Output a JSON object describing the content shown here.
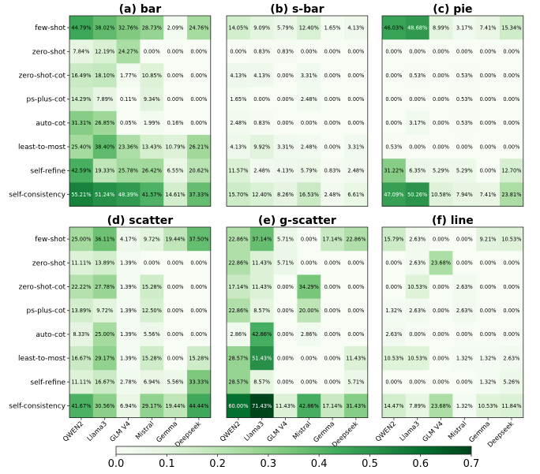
{
  "chart_data": {
    "type": "heatmap",
    "rows": [
      "few-shot",
      "zero-shot",
      "zero-shot-cot",
      "ps-plus-cot",
      "auto-cot",
      "least-to-most",
      "self-refine",
      "self-consistency"
    ],
    "columns": [
      "QWEN2",
      "Llama3",
      "GLM V4",
      "Mistral",
      "Gemma",
      "Deepseek"
    ],
    "colorbar": {
      "min": 0.0,
      "max": 0.7,
      "ticks": [
        "0.0",
        "0.1",
        "0.2",
        "0.3",
        "0.4",
        "0.5",
        "0.6",
        "0.7"
      ],
      "low_color": "#f7fcf5",
      "high_color": "#00441b"
    },
    "panels": [
      {
        "title": "(a) bar",
        "values": [
          [
            44.79,
            38.02,
            32.76,
            28.73,
            2.09,
            24.76
          ],
          [
            7.84,
            12.19,
            24.27,
            0.0,
            0.0,
            0.0
          ],
          [
            16.49,
            18.1,
            1.77,
            10.85,
            0.0,
            0.0
          ],
          [
            14.29,
            7.89,
            0.11,
            9.34,
            0.0,
            0.0
          ],
          [
            31.31,
            26.85,
            0.05,
            1.99,
            0.16,
            0.0
          ],
          [
            25.4,
            38.4,
            23.36,
            13.43,
            10.79,
            26.21
          ],
          [
            42.59,
            19.33,
            25.78,
            26.42,
            6.55,
            20.62
          ],
          [
            55.21,
            51.24,
            48.39,
            41.57,
            14.61,
            37.33
          ]
        ]
      },
      {
        "title": "(b) s-bar",
        "values": [
          [
            14.05,
            9.09,
            5.79,
            12.4,
            1.65,
            4.13
          ],
          [
            0.0,
            0.83,
            0.83,
            0.0,
            0.0,
            0.0
          ],
          [
            4.13,
            4.13,
            0.0,
            3.31,
            0.0,
            0.0
          ],
          [
            1.65,
            0.0,
            0.0,
            2.48,
            0.0,
            0.0
          ],
          [
            2.48,
            0.83,
            0.0,
            0.0,
            0.0,
            0.0
          ],
          [
            4.13,
            9.92,
            3.31,
            2.48,
            0.0,
            3.31
          ],
          [
            11.57,
            2.48,
            4.13,
            5.79,
            0.83,
            2.48
          ],
          [
            15.7,
            12.4,
            8.26,
            16.53,
            2.48,
            6.61
          ]
        ]
      },
      {
        "title": "(c) pie",
        "values": [
          [
            46.03,
            48.68,
            8.99,
            3.17,
            7.41,
            15.34
          ],
          [
            0.0,
            0.0,
            0.0,
            0.0,
            0.0,
            0.0
          ],
          [
            0.0,
            0.53,
            0.0,
            0.53,
            0.0,
            0.0
          ],
          [
            0.0,
            0.0,
            0.0,
            0.53,
            0.0,
            0.0
          ],
          [
            0.0,
            3.17,
            0.0,
            0.53,
            0.0,
            0.0
          ],
          [
            0.53,
            0.0,
            0.0,
            0.0,
            0.0,
            0.0
          ],
          [
            31.22,
            6.35,
            5.29,
            5.29,
            0.0,
            12.7
          ],
          [
            47.09,
            50.26,
            10.58,
            7.94,
            7.41,
            23.81
          ]
        ]
      },
      {
        "title": "(d) scatter",
        "values": [
          [
            25.0,
            36.11,
            4.17,
            9.72,
            19.44,
            37.5
          ],
          [
            11.11,
            13.89,
            1.39,
            0.0,
            0.0,
            0.0
          ],
          [
            22.22,
            27.78,
            1.39,
            15.28,
            0.0,
            0.0
          ],
          [
            13.89,
            9.72,
            1.39,
            12.5,
            0.0,
            0.0
          ],
          [
            8.33,
            25.0,
            1.39,
            5.56,
            0.0,
            0.0
          ],
          [
            16.67,
            29.17,
            1.39,
            15.28,
            0.0,
            15.28
          ],
          [
            11.11,
            16.67,
            2.78,
            6.94,
            5.56,
            33.33
          ],
          [
            41.67,
            30.56,
            6.94,
            29.17,
            19.44,
            44.44
          ]
        ]
      },
      {
        "title": "(e) g-scatter",
        "values": [
          [
            22.86,
            37.14,
            5.71,
            0.0,
            17.14,
            22.86
          ],
          [
            22.86,
            11.43,
            5.71,
            0.0,
            0.0,
            0.0
          ],
          [
            17.14,
            11.43,
            0.0,
            34.29,
            0.0,
            0.0
          ],
          [
            22.86,
            8.57,
            0.0,
            20.0,
            0.0,
            0.0
          ],
          [
            2.86,
            42.86,
            0.0,
            2.86,
            0.0,
            0.0
          ],
          [
            28.57,
            51.43,
            0.0,
            0.0,
            0.0,
            11.43
          ],
          [
            28.57,
            8.57,
            0.0,
            0.0,
            0.0,
            5.71
          ],
          [
            60.0,
            71.43,
            11.43,
            42.86,
            17.14,
            31.43
          ]
        ]
      },
      {
        "title": "(f) line",
        "values": [
          [
            15.79,
            2.63,
            0.0,
            0.0,
            9.21,
            10.53
          ],
          [
            0.0,
            2.63,
            23.68,
            0.0,
            0.0,
            0.0
          ],
          [
            0.0,
            10.53,
            0.0,
            2.63,
            0.0,
            0.0
          ],
          [
            1.32,
            2.63,
            0.0,
            2.63,
            0.0,
            0.0
          ],
          [
            2.63,
            0.0,
            0.0,
            0.0,
            0.0,
            0.0
          ],
          [
            10.53,
            10.53,
            0.0,
            1.32,
            1.32,
            2.63
          ],
          [
            0.0,
            0.0,
            0.0,
            0.0,
            1.32,
            5.26
          ],
          [
            14.47,
            7.89,
            23.68,
            1.32,
            10.53,
            11.84
          ]
        ]
      }
    ]
  }
}
